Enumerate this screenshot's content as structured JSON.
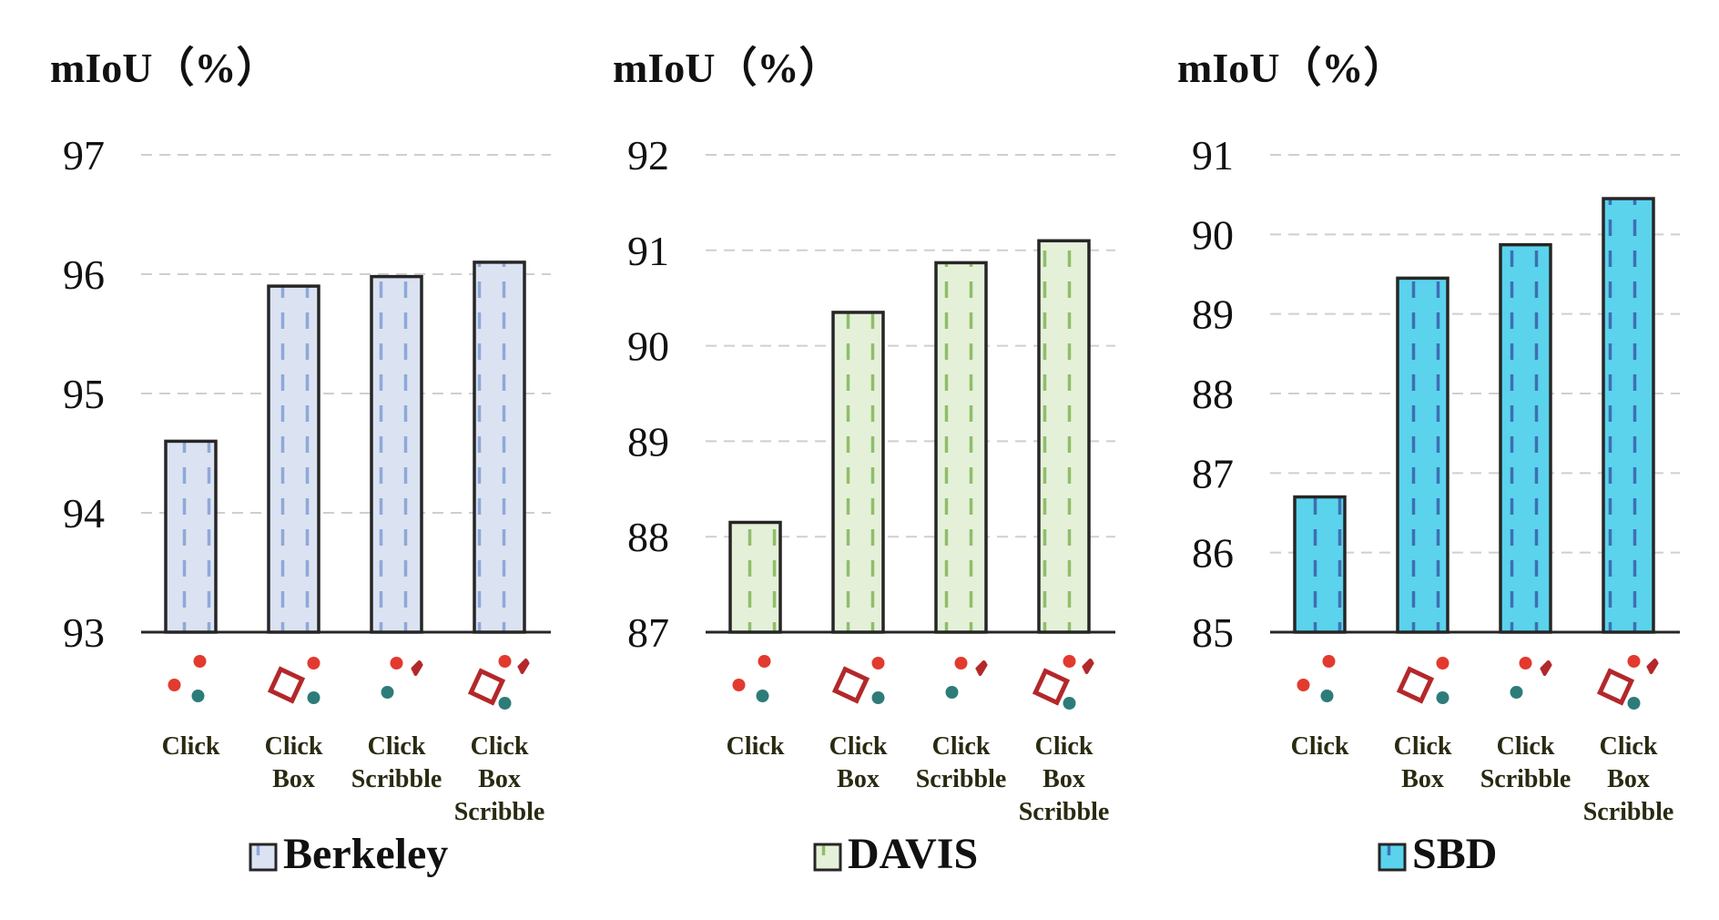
{
  "chart_data": [
    {
      "type": "bar",
      "ylabel": "mIoU（%）",
      "legend": "Berkeley",
      "ylim": [
        93,
        97
      ],
      "yticks": [
        "93",
        "94",
        "95",
        "96",
        "97"
      ],
      "categories": [
        {
          "icon": "click-icon",
          "lines": [
            "Click"
          ]
        },
        {
          "icon": "click-box-icon",
          "lines": [
            "Click",
            "Box"
          ]
        },
        {
          "icon": "click-scribble-icon",
          "lines": [
            "Click",
            "Scribble"
          ]
        },
        {
          "icon": "click-box-scribble-icon",
          "lines": [
            "Click",
            "Box",
            "Scribble"
          ]
        }
      ],
      "values": [
        94.6,
        95.9,
        95.98,
        96.1
      ],
      "fill": "#dbe3f2",
      "stripe": "#8fa8d8",
      "grid": true
    },
    {
      "type": "bar",
      "ylabel": "mIoU（%）",
      "legend": "DAVIS",
      "ylim": [
        87,
        92
      ],
      "yticks": [
        "87",
        "88",
        "89",
        "90",
        "91",
        "92"
      ],
      "categories": [
        {
          "icon": "click-icon",
          "lines": [
            "Click"
          ]
        },
        {
          "icon": "click-box-icon",
          "lines": [
            "Click",
            "Box"
          ]
        },
        {
          "icon": "click-scribble-icon",
          "lines": [
            "Click",
            "Scribble"
          ]
        },
        {
          "icon": "click-box-scribble-icon",
          "lines": [
            "Click",
            "Box",
            "Scribble"
          ]
        }
      ],
      "values": [
        88.15,
        90.35,
        90.87,
        91.1
      ],
      "fill": "#e5f0d9",
      "stripe": "#8fbe6a",
      "grid": true
    },
    {
      "type": "bar",
      "ylabel": "mIoU（%）",
      "legend": "SBD",
      "ylim": [
        85,
        91
      ],
      "yticks": [
        "85",
        "86",
        "87",
        "88",
        "89",
        "90",
        "91"
      ],
      "categories": [
        {
          "icon": "click-icon",
          "lines": [
            "Click"
          ]
        },
        {
          "icon": "click-box-icon",
          "lines": [
            "Click",
            "Box"
          ]
        },
        {
          "icon": "click-scribble-icon",
          "lines": [
            "Click",
            "Scribble"
          ]
        },
        {
          "icon": "click-box-scribble-icon",
          "lines": [
            "Click",
            "Box",
            "Scribble"
          ]
        }
      ],
      "values": [
        86.7,
        89.45,
        89.87,
        90.45
      ],
      "fill": "#5bd3ec",
      "stripe": "#3d6fb3",
      "grid": true
    }
  ],
  "colors": {
    "bar_border": "#262626",
    "grid": "#cfcfcf",
    "axis": "#262626",
    "icon_red": "#e23a2e",
    "icon_teal": "#2d7c79",
    "icon_box": "#b3282a"
  }
}
